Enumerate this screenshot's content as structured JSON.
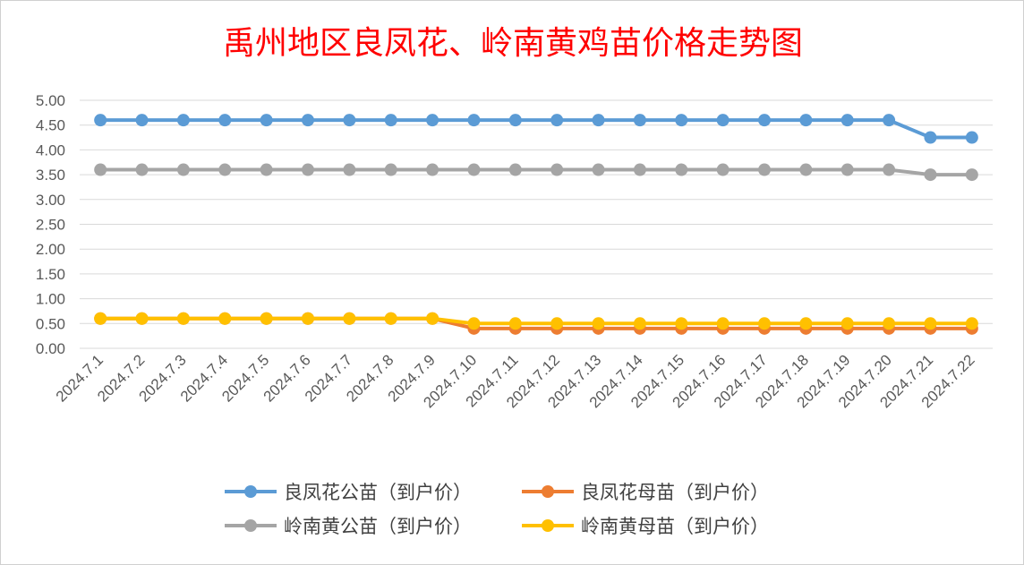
{
  "chart_data": {
    "type": "line",
    "title": "禹州地区良凤花、岭南黄鸡苗价格走势图",
    "xlabel": "",
    "ylabel": "",
    "ylim": [
      0,
      5
    ],
    "yticks": [
      "0.00",
      "0.50",
      "1.00",
      "1.50",
      "2.00",
      "2.50",
      "3.00",
      "3.50",
      "4.00",
      "4.50",
      "5.00"
    ],
    "grid": true,
    "legend_position": "bottom",
    "categories": [
      "2024.7.1",
      "2024.7.2",
      "2024.7.3",
      "2024.7.4",
      "2024.7.5",
      "2024.7.6",
      "2024.7.7",
      "2024.7.8",
      "2024.7.9",
      "2024.7.10",
      "2024.7.11",
      "2024.7.12",
      "2024.7.13",
      "2024.7.14",
      "2024.7.15",
      "2024.7.16",
      "2024.7.17",
      "2024.7.18",
      "2024.7.19",
      "2024.7.20",
      "2024.7.21",
      "2024.7.22"
    ],
    "series": [
      {
        "name": "良凤花公苗（到户价）",
        "color": "#5b9bd5",
        "values": [
          4.6,
          4.6,
          4.6,
          4.6,
          4.6,
          4.6,
          4.6,
          4.6,
          4.6,
          4.6,
          4.6,
          4.6,
          4.6,
          4.6,
          4.6,
          4.6,
          4.6,
          4.6,
          4.6,
          4.6,
          4.25,
          4.25
        ]
      },
      {
        "name": "良凤花母苗（到户价）",
        "color": "#ed7d31",
        "values": [
          0.6,
          0.6,
          0.6,
          0.6,
          0.6,
          0.6,
          0.6,
          0.6,
          0.6,
          0.4,
          0.4,
          0.4,
          0.4,
          0.4,
          0.4,
          0.4,
          0.4,
          0.4,
          0.4,
          0.4,
          0.4,
          0.4
        ]
      },
      {
        "name": "岭南黄公苗（到户价）",
        "color": "#a5a5a5",
        "values": [
          3.6,
          3.6,
          3.6,
          3.6,
          3.6,
          3.6,
          3.6,
          3.6,
          3.6,
          3.6,
          3.6,
          3.6,
          3.6,
          3.6,
          3.6,
          3.6,
          3.6,
          3.6,
          3.6,
          3.6,
          3.5,
          3.5
        ]
      },
      {
        "name": "岭南黄母苗（到户价）",
        "color": "#ffc000",
        "values": [
          0.6,
          0.6,
          0.6,
          0.6,
          0.6,
          0.6,
          0.6,
          0.6,
          0.6,
          0.5,
          0.5,
          0.5,
          0.5,
          0.5,
          0.5,
          0.5,
          0.5,
          0.5,
          0.5,
          0.5,
          0.5,
          0.5
        ]
      }
    ]
  }
}
